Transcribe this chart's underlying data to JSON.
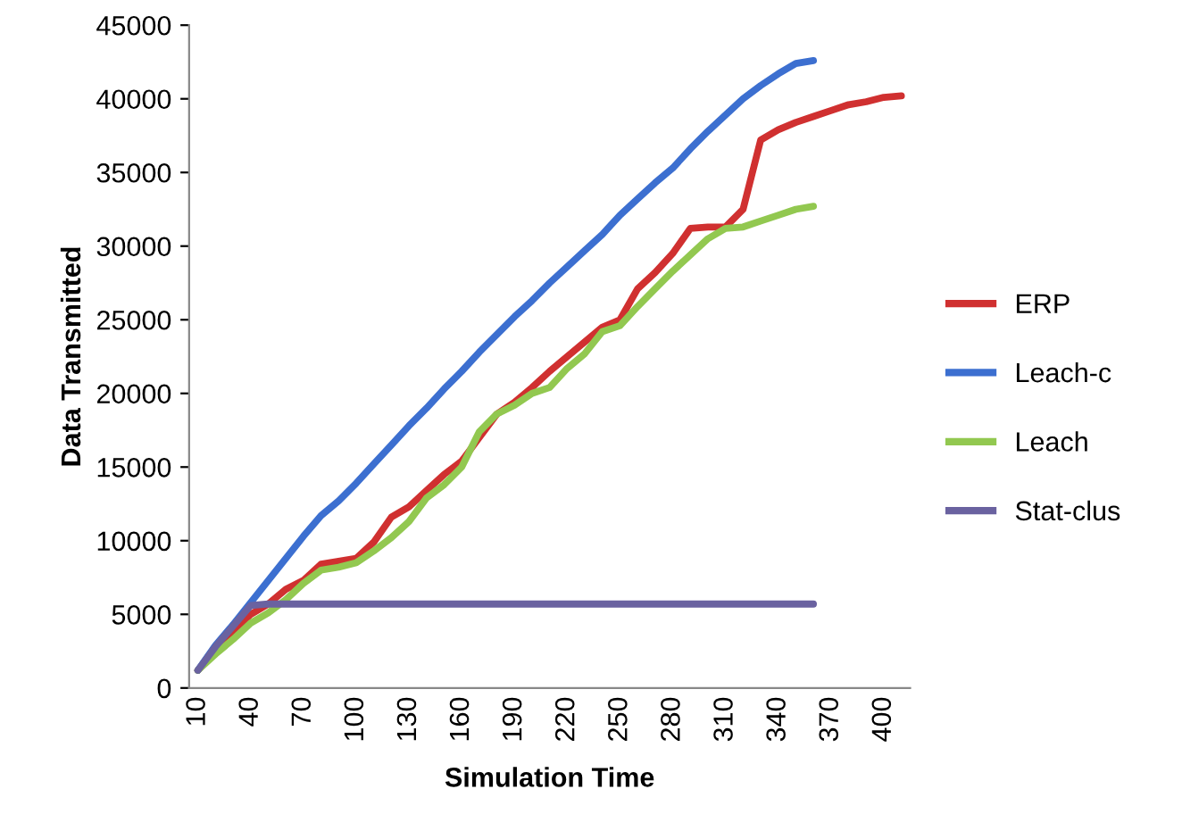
{
  "chart_data": {
    "type": "line",
    "xlabel": "Simulation Time",
    "ylabel": "Data Transmitted",
    "categories": [
      "10",
      null,
      null,
      "40",
      null,
      null,
      "70",
      null,
      null,
      "100",
      null,
      null,
      "130",
      null,
      null,
      "160",
      null,
      null,
      "190",
      null,
      null,
      "220",
      null,
      null,
      "250",
      null,
      null,
      "280",
      null,
      null,
      "310",
      null,
      null,
      "340",
      null,
      null,
      "370",
      null,
      null,
      "400",
      null
    ],
    "ylim": [
      0,
      45000
    ],
    "yticks": [
      0,
      5000,
      10000,
      15000,
      20000,
      25000,
      30000,
      35000,
      40000,
      45000
    ],
    "grid": false,
    "legend": "right",
    "marker": "none",
    "series": [
      {
        "name": "ERP",
        "color": "#d03030",
        "values": [
          1200,
          2600,
          3800,
          5000,
          5700,
          6700,
          7300,
          8400,
          8600,
          8800,
          9900,
          11600,
          12300,
          13400,
          14500,
          15400,
          17000,
          18600,
          19400,
          20400,
          21500,
          22500,
          23500,
          24500,
          25000,
          27100,
          28200,
          29500,
          31200,
          31300,
          31300,
          32500,
          37200,
          37900,
          38400,
          38800,
          39200,
          39600,
          39800,
          40100,
          40200
        ]
      },
      {
        "name": "Leach-c",
        "color": "#3c6fd0",
        "values": [
          1200,
          2900,
          4300,
          5800,
          7300,
          8800,
          10300,
          11700,
          12700,
          13900,
          15200,
          16500,
          17800,
          19000,
          20300,
          21500,
          22800,
          24000,
          25200,
          26300,
          27500,
          28600,
          29700,
          30800,
          32100,
          33200,
          34300,
          35300,
          36600,
          37800,
          38900,
          40000,
          40900,
          41700,
          42400,
          42600,
          null,
          null,
          null,
          null,
          null
        ]
      },
      {
        "name": "Leach",
        "color": "#92c850",
        "values": [
          1200,
          2300,
          3300,
          4400,
          5100,
          6000,
          7100,
          8000,
          8200,
          8500,
          9300,
          10200,
          11300,
          12900,
          13800,
          15000,
          17400,
          18600,
          19200,
          20000,
          20400,
          21700,
          22700,
          24200,
          24600,
          25900,
          27100,
          28300,
          29400,
          30500,
          31200,
          31300,
          31700,
          32100,
          32500,
          32700,
          null,
          null,
          null,
          null,
          null
        ]
      },
      {
        "name": "Stat-clus",
        "color": "#6a62a0",
        "values": [
          1200,
          2800,
          4200,
          5600,
          5700,
          5700,
          5700,
          5700,
          5700,
          5700,
          5700,
          5700,
          5700,
          5700,
          5700,
          5700,
          5700,
          5700,
          5700,
          5700,
          5700,
          5700,
          5700,
          5700,
          5700,
          5700,
          5700,
          5700,
          5700,
          5700,
          5700,
          5700,
          5700,
          5700,
          5700,
          5700,
          null,
          null,
          null,
          null,
          null
        ]
      }
    ]
  }
}
